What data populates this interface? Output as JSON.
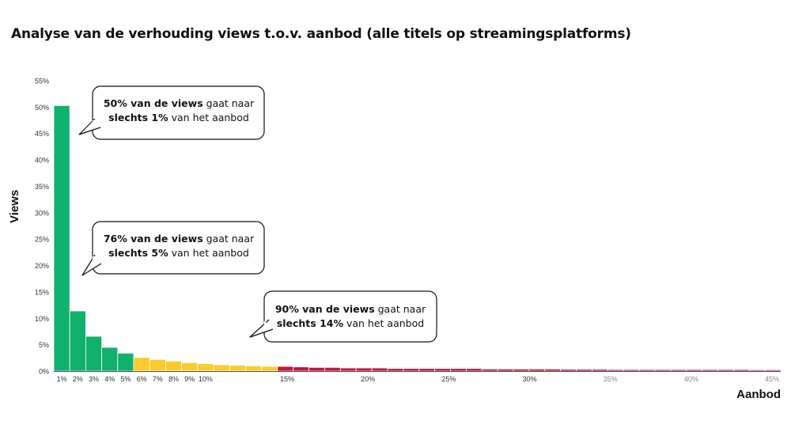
{
  "title": "Analyse van de verhouding views t.o.v. aanbod (alle titels op streamingsplatforms)",
  "chart_data": {
    "type": "bar",
    "xlabel": "Aanbod",
    "ylabel": "Views",
    "ylim": [
      0,
      55
    ],
    "yticks": [
      "0%",
      "5%",
      "10%",
      "15%",
      "20%",
      "25%",
      "30%",
      "35%",
      "40%",
      "45%",
      "50%",
      "55%"
    ],
    "xticks": [
      {
        "pos": 1,
        "label": "1%"
      },
      {
        "pos": 2,
        "label": "2%"
      },
      {
        "pos": 3,
        "label": "3%"
      },
      {
        "pos": 4,
        "label": "4%"
      },
      {
        "pos": 5,
        "label": "5%"
      },
      {
        "pos": 6,
        "label": "6%"
      },
      {
        "pos": 7,
        "label": "7%"
      },
      {
        "pos": 8,
        "label": "8%"
      },
      {
        "pos": 9,
        "label": "9%"
      },
      {
        "pos": 10,
        "label": "10%"
      },
      {
        "pos": 15,
        "label": "15%"
      },
      {
        "pos": 20,
        "label": "20%"
      },
      {
        "pos": 25,
        "label": "25%"
      },
      {
        "pos": 30,
        "label": "30%"
      },
      {
        "pos": 35,
        "label": "35%"
      },
      {
        "pos": 40,
        "label": "40%"
      },
      {
        "pos": 45,
        "label": "45%"
      }
    ],
    "series": [
      {
        "color": "#10b16d",
        "values": [
          50.3,
          11.4,
          6.6,
          4.5,
          3.4
        ]
      },
      {
        "color": "#fbcb2d",
        "values": [
          2.6,
          2.2,
          1.9,
          1.6,
          1.4,
          1.2,
          1.1,
          1.0,
          0.9
        ]
      },
      {
        "color": "#c8143c",
        "values": [
          0.9,
          0.8,
          0.7,
          0.7,
          0.6,
          0.6,
          0.6,
          0.5,
          0.5,
          0.5,
          0.5,
          0.5,
          0.5,
          0.4,
          0.4,
          0.4,
          0.4,
          0.4,
          0.35,
          0.35,
          0.35,
          0.3,
          0.3,
          0.3,
          0.3,
          0.3,
          0.3,
          0.3,
          0.3,
          0.3,
          0.25,
          0.25
        ]
      }
    ],
    "annotations": [
      {
        "bold1": "50% van de views",
        "rest1": " gaat naar",
        "bold2": "slechts 1%",
        "rest2": " van het aanbod"
      },
      {
        "bold1": "76% van de views",
        "rest1": " gaat naar",
        "bold2": "slechts 5%",
        "rest2": " van het aanbod"
      },
      {
        "bold1": "90% van de views",
        "rest1": " gaat naar",
        "bold2": "slechts 14%",
        "rest2": " van het aanbod"
      }
    ]
  }
}
